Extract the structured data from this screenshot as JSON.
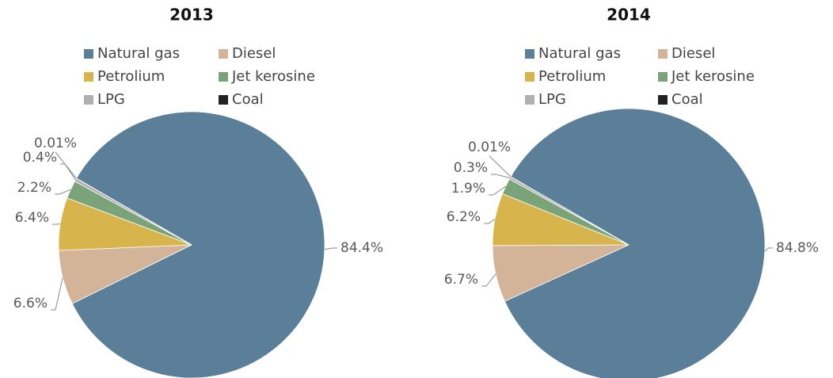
{
  "chart_data": [
    {
      "type": "pie",
      "title": "2013",
      "categories": [
        "Natural gas",
        "Diesel",
        "Petrolium",
        "Jet kerosine",
        "LPG",
        "Coal"
      ],
      "values": [
        84.4,
        6.6,
        6.4,
        2.2,
        0.4,
        0.01
      ],
      "value_labels": [
        "84.4%",
        "6.6%",
        "6.4%",
        "2.2%",
        "0.4%",
        "0.01%"
      ],
      "colors": [
        "#5b7f99",
        "#d4b499",
        "#d8b54c",
        "#7ba37a",
        "#b0b0b0",
        "#222222"
      ]
    },
    {
      "type": "pie",
      "title": "2014",
      "categories": [
        "Natural gas",
        "Diesel",
        "Petrolium",
        "Jet kerosine",
        "LPG",
        "Coal"
      ],
      "values": [
        84.8,
        6.7,
        6.2,
        1.9,
        0.3,
        0.01
      ],
      "value_labels": [
        "84.8%",
        "6.7%",
        "6.2%",
        "1.9%",
        "0.3%",
        "0.01%"
      ],
      "colors": [
        "#5b7f99",
        "#d4b499",
        "#d8b54c",
        "#7ba37a",
        "#b0b0b0",
        "#222222"
      ]
    }
  ]
}
